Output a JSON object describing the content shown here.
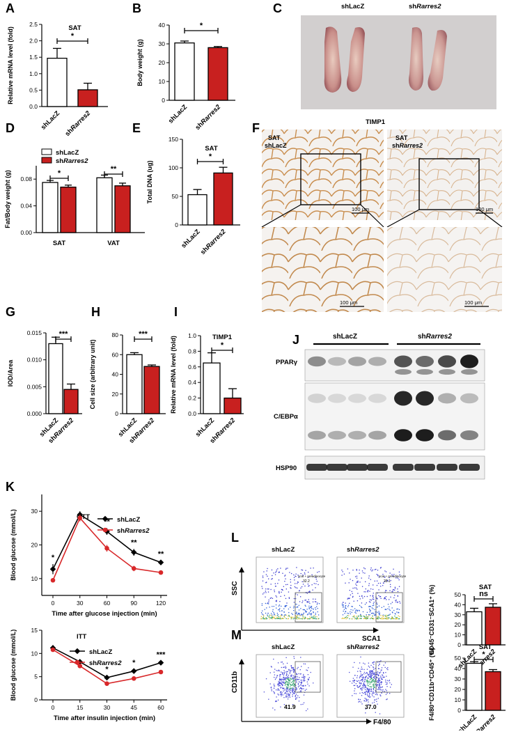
{
  "colors": {
    "control": "#ffffff",
    "knockdown": "#c8201f",
    "black_line": "#000000",
    "red_line": "#d8282a"
  },
  "groups": {
    "control": "shLacZ",
    "knockdown": "shRarres2"
  },
  "panels": {
    "A": {
      "letter": "A",
      "title": "SAT",
      "ylabel": "Relative mRNA level (fold)",
      "ticks": [
        "0.0",
        "0.5",
        "1.0",
        "1.5",
        "2.0",
        "2.5"
      ],
      "sig": "*"
    },
    "B": {
      "letter": "B",
      "ylabel": "Body weight (g)",
      "ticks": [
        "0",
        "10",
        "20",
        "30",
        "40"
      ],
      "sig": "*"
    },
    "C": {
      "letter": "C",
      "label_left": "shLacZ",
      "label_right": "shRarres2"
    },
    "D": {
      "letter": "D",
      "ylabel": "Fat/Body weight (g)",
      "ticks": [
        "0.00",
        "0.04",
        "0.08"
      ],
      "categories": [
        "SAT",
        "VAT"
      ],
      "sig": [
        "*",
        "**"
      ]
    },
    "E": {
      "letter": "E",
      "title": "SAT",
      "ylabel": "Total DNA (ug)",
      "ticks": [
        "0",
        "50",
        "100",
        "150"
      ],
      "sig": "*"
    },
    "F": {
      "letter": "F",
      "title": "TIMP1",
      "left_label_1": "SAT",
      "left_label_2": "shLacZ",
      "right_label_1": "SAT",
      "right_label_2": "shRarres2",
      "scale": "100 μm"
    },
    "G": {
      "letter": "G",
      "ylabel": "IOD/Area",
      "ticks": [
        "0.000",
        "0.005",
        "0.010",
        "0.015"
      ],
      "sig": "***"
    },
    "H": {
      "letter": "H",
      "ylabel": "Cell size (arbitrary unit)",
      "ticks": [
        "0",
        "20",
        "40",
        "60",
        "80"
      ],
      "sig": "***"
    },
    "I": {
      "letter": "I",
      "title": "TIMP1",
      "ylabel": "Relative mRNA level (fold)",
      "ticks": [
        "0.0",
        "0.2",
        "0.4",
        "0.6",
        "0.8",
        "1.0"
      ],
      "sig": "*"
    },
    "J": {
      "letter": "J",
      "group_left": "shLacZ",
      "group_right": "shRarres2",
      "bands": [
        "PPARγ",
        "C/EBPα",
        "HSP90"
      ]
    },
    "K": {
      "letter": "K",
      "gtt_title": "GTT",
      "itt_title": "ITT",
      "ylabel": "Blood glucose (mmol/L)",
      "gtt_xlabel": "Time after glucose injection (min)",
      "itt_xlabel": "Time after insulin injection (min)",
      "gtt_xticks": [
        "0",
        "30",
        "60",
        "90",
        "120"
      ],
      "itt_xticks": [
        "0",
        "15",
        "30",
        "45",
        "60"
      ],
      "gtt_yticks": [
        "10",
        "20",
        "30"
      ],
      "itt_yticks": [
        "0",
        "5",
        "10",
        "15"
      ],
      "gtt_sig": [
        "*",
        "**",
        "**",
        "**"
      ],
      "itt_sig": [
        "*",
        "*",
        "***"
      ]
    },
    "L": {
      "letter": "L",
      "ssc": "SSC",
      "sca1": "SCA1",
      "gate_text": "scat + preadipocyte",
      "gate_left": "32.2",
      "gate_right": "28.1",
      "bar_title": "SAT",
      "bar_ylabel": "CD45⁻CD31⁻SCA1⁺ (%)",
      "bar_ticks": [
        "0",
        "10",
        "20",
        "30",
        "40",
        "50"
      ],
      "sig": "ns"
    },
    "M": {
      "letter": "M",
      "cd11b": "CD11b",
      "f480": "F4/80",
      "gate_left": "41.9",
      "gate_right": "37.0",
      "bar_title": "SAT",
      "bar_ylabel": "F4/80⁺CD11b⁺CD45⁺ (%)",
      "bar_ticks": [
        "0",
        "10",
        "20",
        "30",
        "40",
        "50"
      ],
      "sig": "*"
    }
  },
  "chart_data": [
    {
      "type": "bar",
      "panel": "A",
      "title": "SAT",
      "ylabel": "Relative mRNA level (fold)",
      "ylim": [
        0,
        2.5
      ],
      "categories": [
        "shLacZ",
        "shRarres2"
      ],
      "values": [
        1.47,
        0.51
      ],
      "errors": [
        0.3,
        0.2
      ]
    },
    {
      "type": "bar",
      "panel": "B",
      "ylabel": "Body weight (g)",
      "ylim": [
        0,
        40
      ],
      "categories": [
        "shLacZ",
        "shRarres2"
      ],
      "values": [
        30.5,
        28.0
      ],
      "errors": [
        1.0,
        0.6
      ]
    },
    {
      "type": "bar",
      "panel": "D",
      "ylabel": "Fat/Body weight (g)",
      "ylim": [
        0,
        0.1
      ],
      "categories": [
        "SAT",
        "VAT"
      ],
      "series": [
        {
          "name": "shLacZ",
          "values": [
            0.075,
            0.082
          ],
          "errors": [
            0.003,
            0.004
          ]
        },
        {
          "name": "shRarres2",
          "values": [
            0.068,
            0.07
          ],
          "errors": [
            0.003,
            0.004
          ]
        }
      ],
      "legend": "top-left"
    },
    {
      "type": "bar",
      "panel": "E",
      "title": "SAT",
      "ylabel": "Total DNA (ug)",
      "ylim": [
        0,
        150
      ],
      "categories": [
        "shLacZ",
        "shRarres2"
      ],
      "values": [
        53,
        91
      ],
      "errors": [
        9,
        10
      ]
    },
    {
      "type": "bar",
      "panel": "G",
      "ylabel": "IOD/Area",
      "ylim": [
        0,
        0.015
      ],
      "categories": [
        "shLacZ",
        "shRarres2"
      ],
      "values": [
        0.013,
        0.0045
      ],
      "errors": [
        0.0012,
        0.001
      ]
    },
    {
      "type": "bar",
      "panel": "H",
      "ylabel": "Cell size (arbitrary unit)",
      "ylim": [
        0,
        80
      ],
      "categories": [
        "shLacZ",
        "shRarres2"
      ],
      "values": [
        60,
        48
      ],
      "errors": [
        2,
        1.5
      ]
    },
    {
      "type": "bar",
      "panel": "I",
      "title": "TIMP1",
      "ylabel": "Relative mRNA level (fold)",
      "ylim": [
        0,
        1.0
      ],
      "categories": [
        "shLacZ",
        "shRarres2"
      ],
      "values": [
        0.65,
        0.2
      ],
      "errors": [
        0.13,
        0.12
      ]
    },
    {
      "type": "line",
      "panel": "K-GTT",
      "title": "GTT",
      "xlabel": "Time after glucose injection (min)",
      "ylabel": "Blood glucose (mmol/L)",
      "ylim": [
        5,
        35
      ],
      "x": [
        0,
        30,
        60,
        90,
        120
      ],
      "series": [
        {
          "name": "shLacZ",
          "values": [
            12.8,
            29.0,
            24.0,
            17.8,
            14.8
          ],
          "errors": [
            1.5,
            1.0,
            1.0,
            1.0,
            0.5
          ]
        },
        {
          "name": "shRarres2",
          "values": [
            9.5,
            28.0,
            19.0,
            13.0,
            11.8
          ],
          "errors": [
            0.3,
            1.0,
            1.0,
            0.8,
            0.4
          ]
        }
      ]
    },
    {
      "type": "line",
      "panel": "K-ITT",
      "title": "ITT",
      "xlabel": "Time after insulin injection (min)",
      "ylabel": "Blood glucose (mmol/L)",
      "ylim": [
        0,
        15
      ],
      "x": [
        0,
        15,
        30,
        45,
        60
      ],
      "series": [
        {
          "name": "shLacZ",
          "values": [
            11.2,
            8.2,
            4.8,
            6.2,
            8.0
          ],
          "errors": [
            0.6,
            0.3,
            0.4,
            0.4,
            0.3
          ]
        },
        {
          "name": "shRarres2",
          "values": [
            10.8,
            7.3,
            3.5,
            4.6,
            6.0
          ],
          "errors": [
            0.3,
            0.3,
            0.3,
            0.4,
            0.3
          ]
        }
      ]
    },
    {
      "type": "bar",
      "panel": "L",
      "title": "SAT",
      "ylabel": "CD45⁻CD31⁻SCA1⁺ (%)",
      "ylim": [
        0,
        50
      ],
      "categories": [
        "shLacZ",
        "shRarres2"
      ],
      "values": [
        33,
        37.5
      ],
      "errors": [
        3.5,
        3.5
      ]
    },
    {
      "type": "bar",
      "panel": "M",
      "title": "SAT",
      "ylabel": "F4/80⁺CD11b⁺CD45⁺ (%)",
      "ylim": [
        0,
        50
      ],
      "categories": [
        "shLacZ",
        "shRarres2"
      ],
      "values": [
        45,
        37
      ],
      "errors": [
        1.5,
        2.0
      ]
    }
  ]
}
